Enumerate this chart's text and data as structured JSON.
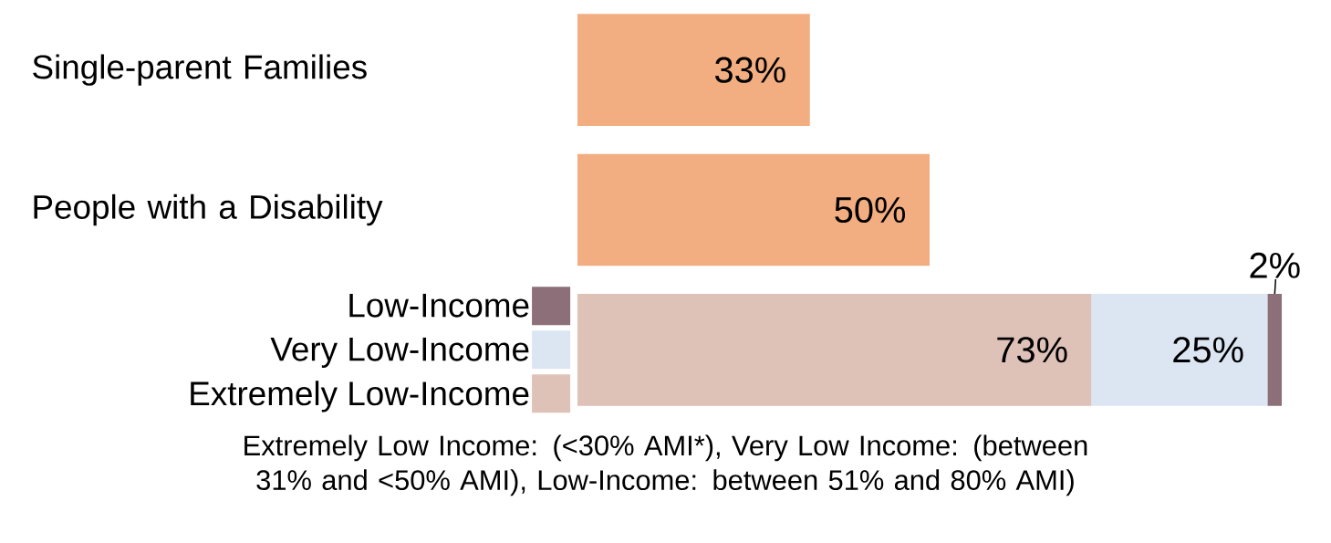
{
  "chart_data": {
    "type": "bar",
    "orientation": "horizontal",
    "stacked": true,
    "categories": [
      "Single-parent Families",
      "People with a Disability",
      null
    ],
    "series": [
      {
        "color": "#f2ae80",
        "values": [
          33,
          50,
          null
        ],
        "value_labels": [
          "33%",
          "50%",
          null
        ]
      },
      {
        "name": "Extremely Low-Income",
        "color": "#dfc2b7",
        "values": [
          null,
          null,
          73
        ],
        "value_labels": [
          null,
          null,
          "73%"
        ]
      },
      {
        "name": "Very Low-Income",
        "color": "#dce6f3",
        "values": [
          null,
          null,
          25
        ],
        "value_labels": [
          null,
          null,
          "25%"
        ]
      },
      {
        "name": "Low-Income",
        "color": "#8c6f79",
        "values": [
          null,
          null,
          2
        ],
        "value_labels": [
          null,
          null,
          "2%"
        ]
      }
    ],
    "legend": "left",
    "annotations": [
      "Extremely Low Income: (<30% AMI*), Very Low Income: (between 31% and <50% AMI), Low-Income: between 51% and 80% AMI)"
    ]
  }
}
